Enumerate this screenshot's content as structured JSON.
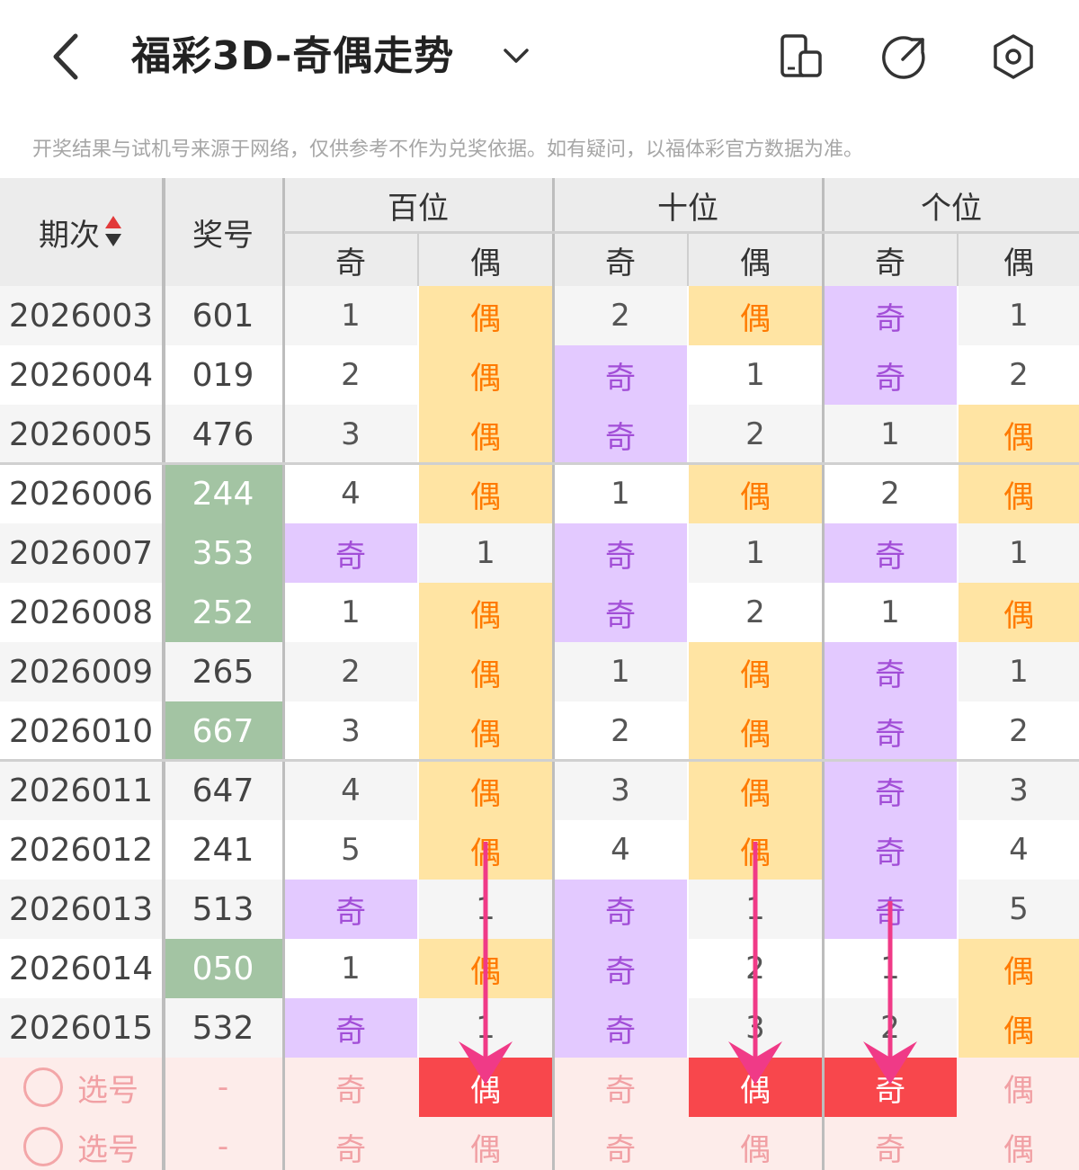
{
  "header": {
    "title": "福彩3D-奇偶走势",
    "notice": "开奖结果与试机号来源于网络，仅供参考不作为兑奖依据。如有疑问，以福体彩官方数据为准。"
  },
  "table": {
    "col_period": "期次",
    "col_number": "奖号",
    "groups": [
      "百位",
      "十位",
      "个位"
    ],
    "sub": [
      "奇",
      "偶",
      "奇",
      "偶",
      "奇",
      "偶"
    ],
    "rows": [
      {
        "period": "2026003",
        "number": "601",
        "hl": false,
        "cells": [
          "1",
          "偶",
          "2",
          "偶",
          "奇",
          "1"
        ]
      },
      {
        "period": "2026004",
        "number": "019",
        "hl": false,
        "cells": [
          "2",
          "偶",
          "奇",
          "1",
          "奇",
          "2"
        ]
      },
      {
        "period": "2026005",
        "number": "476",
        "hl": false,
        "cells": [
          "3",
          "偶",
          "奇",
          "2",
          "1",
          "偶"
        ]
      },
      {
        "period": "2026006",
        "number": "244",
        "hl": true,
        "cells": [
          "4",
          "偶",
          "1",
          "偶",
          "2",
          "偶"
        ]
      },
      {
        "period": "2026007",
        "number": "353",
        "hl": true,
        "cells": [
          "奇",
          "1",
          "奇",
          "1",
          "奇",
          "1"
        ]
      },
      {
        "period": "2026008",
        "number": "252",
        "hl": true,
        "cells": [
          "1",
          "偶",
          "奇",
          "2",
          "1",
          "偶"
        ]
      },
      {
        "period": "2026009",
        "number": "265",
        "hl": false,
        "cells": [
          "2",
          "偶",
          "1",
          "偶",
          "奇",
          "1"
        ]
      },
      {
        "period": "2026010",
        "number": "667",
        "hl": true,
        "cells": [
          "3",
          "偶",
          "2",
          "偶",
          "奇",
          "2"
        ]
      },
      {
        "period": "2026011",
        "number": "647",
        "hl": false,
        "cells": [
          "4",
          "偶",
          "3",
          "偶",
          "奇",
          "3"
        ]
      },
      {
        "period": "2026012",
        "number": "241",
        "hl": false,
        "cells": [
          "5",
          "偶",
          "4",
          "偶",
          "奇",
          "4"
        ]
      },
      {
        "period": "2026013",
        "number": "513",
        "hl": false,
        "cells": [
          "奇",
          "1",
          "奇",
          "1",
          "奇",
          "5"
        ]
      },
      {
        "period": "2026014",
        "number": "050",
        "hl": true,
        "cells": [
          "1",
          "偶",
          "奇",
          "2",
          "1",
          "偶"
        ]
      },
      {
        "period": "2026015",
        "number": "532",
        "hl": false,
        "cells": [
          "奇",
          "1",
          "奇",
          "3",
          "2",
          "偶"
        ]
      }
    ],
    "select_rows": [
      {
        "label": "选号",
        "number": "-",
        "cells": [
          "奇",
          "偶",
          "奇",
          "偶",
          "奇",
          "偶"
        ],
        "active": [
          false,
          true,
          false,
          true,
          true,
          false
        ]
      },
      {
        "label": "选号",
        "number": "-",
        "cells": [
          "奇",
          "偶",
          "奇",
          "偶",
          "奇",
          "偶"
        ],
        "active": [
          false,
          false,
          false,
          false,
          false,
          false
        ]
      }
    ]
  },
  "colors": {
    "odd_bg": "#e3c9ff",
    "odd_fg": "#a24ed7",
    "even_bg": "#ffe4a3",
    "even_fg": "#ff7a00",
    "highlight_number_bg": "#a3c4a3",
    "selected_bg": "#f8474c",
    "arrow": "#f03a87"
  },
  "icons": [
    "back-icon",
    "dropdown-chevron-icon",
    "device-icon",
    "share-icon",
    "settings-icon",
    "sort-icon"
  ]
}
